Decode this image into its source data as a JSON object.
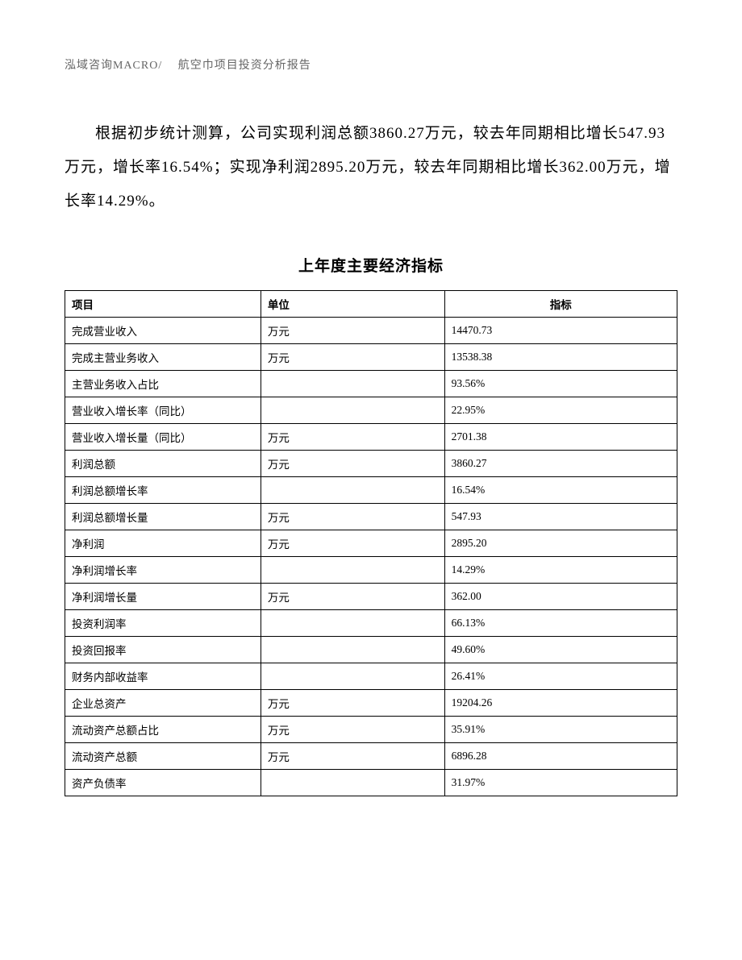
{
  "header": "泓域咨询MACRO/　 航空巾项目投资分析报告",
  "paragraph": "根据初步统计测算，公司实现利润总额3860.27万元，较去年同期相比增长547.93万元，增长率16.54%；实现净利润2895.20万元，较去年同期相比增长362.00万元，增长率14.29%。",
  "table": {
    "title": "上年度主要经济指标",
    "columns": [
      "项目",
      "单位",
      "指标"
    ],
    "rows": [
      [
        "完成营业收入",
        "万元",
        "14470.73"
      ],
      [
        "完成主营业务收入",
        "万元",
        "13538.38"
      ],
      [
        "主营业务收入占比",
        "",
        "93.56%"
      ],
      [
        "营业收入增长率（同比）",
        "",
        "22.95%"
      ],
      [
        "营业收入增长量（同比）",
        "万元",
        "2701.38"
      ],
      [
        "利润总额",
        "万元",
        "3860.27"
      ],
      [
        "利润总额增长率",
        "",
        "16.54%"
      ],
      [
        "利润总额增长量",
        "万元",
        "547.93"
      ],
      [
        "净利润",
        "万元",
        "2895.20"
      ],
      [
        "净利润增长率",
        "",
        "14.29%"
      ],
      [
        "净利润增长量",
        "万元",
        "362.00"
      ],
      [
        "投资利润率",
        "",
        "66.13%"
      ],
      [
        "投资回报率",
        "",
        "49.60%"
      ],
      [
        "财务内部收益率",
        "",
        "26.41%"
      ],
      [
        "企业总资产",
        "万元",
        "19204.26"
      ],
      [
        "流动资产总额占比",
        "万元",
        "35.91%"
      ],
      [
        "流动资产总额",
        "万元",
        "6896.28"
      ],
      [
        "资产负债率",
        "",
        "31.97%"
      ]
    ],
    "border_color": "#000000",
    "background_color": "#ffffff",
    "header_font_weight": "bold",
    "cell_fontsize": 13.5
  }
}
